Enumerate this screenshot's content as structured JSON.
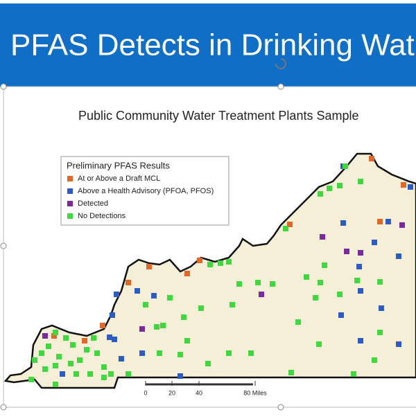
{
  "header": {
    "title": "PFAS Detects in Drinking Wat"
  },
  "map": {
    "subtitle": "Public Community Water Treatment Plants Sample",
    "legend": {
      "title": "Preliminary PFAS Results",
      "items": [
        {
          "label": "At or Above a Draft MCL",
          "color": "#e0692a"
        },
        {
          "label": "Above a Health Advisory (PFOA, PFOS)",
          "color": "#2a5cc4"
        },
        {
          "label": "Detected",
          "color": "#7a2a9e"
        },
        {
          "label": "No Detections",
          "color": "#3fd83f"
        }
      ]
    },
    "scale": {
      "labels": [
        "0",
        "20",
        "40",
        "80 Miles"
      ]
    }
  }
}
